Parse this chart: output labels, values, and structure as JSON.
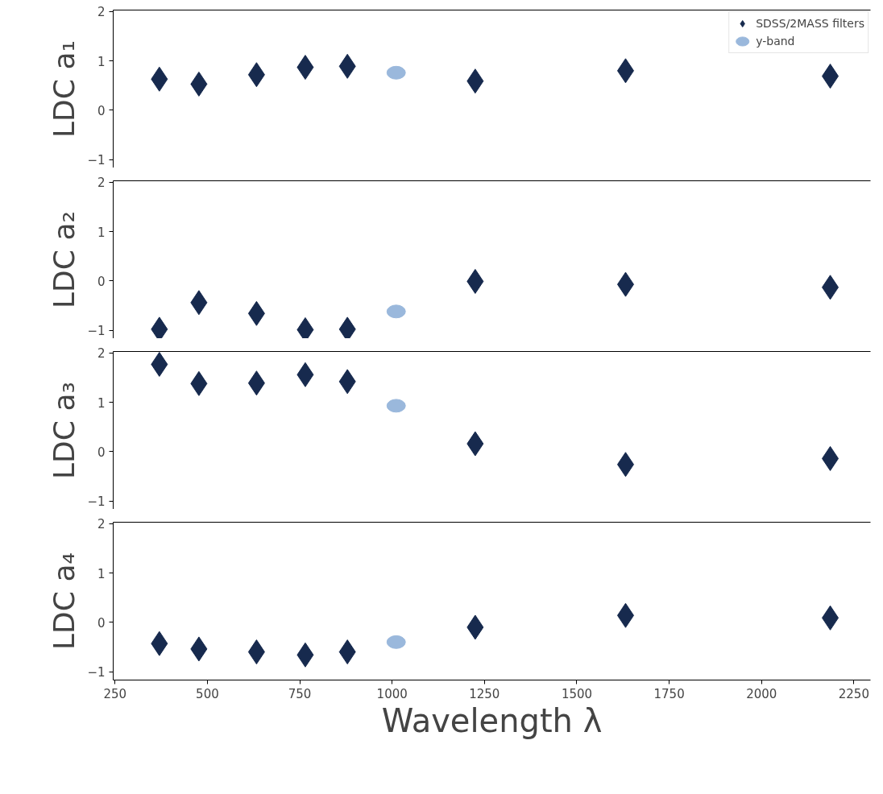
{
  "chart_data": [
    {
      "type": "scatter",
      "ylabel": "LDC a₁",
      "xlim": [
        245,
        2295
      ],
      "xticks": [
        250,
        500,
        750,
        1000,
        1250,
        1500,
        1750,
        2000,
        2250
      ],
      "ylim": [
        -1.17,
        2.03
      ],
      "yticks": [
        -1,
        0,
        1,
        2
      ],
      "tick_labels": "y",
      "legend": "top right",
      "grid": false,
      "series": [
        {
          "name": "SDSS/2MASS filters",
          "color": "#172a4e",
          "marker": "diamond",
          "x": [
            370,
            477,
            633,
            765,
            879,
            1225,
            1632,
            2186
          ],
          "values": [
            0.63,
            0.53,
            0.72,
            0.87,
            0.89,
            0.59,
            0.8,
            0.69
          ]
        },
        {
          "name": "y-band",
          "color": "#9ab8dc",
          "marker": "circle",
          "x": [
            1011
          ],
          "values": [
            0.76
          ]
        }
      ]
    },
    {
      "type": "scatter",
      "ylabel": "LDC a₂",
      "xlim": [
        245,
        2295
      ],
      "xticks": [
        250,
        500,
        750,
        1000,
        1250,
        1500,
        1750,
        2000,
        2250
      ],
      "ylim": [
        -1.17,
        2.03
      ],
      "yticks": [
        -1,
        0,
        1,
        2
      ],
      "tick_labels": "y",
      "grid": false,
      "series": [
        {
          "color": "#172a4e",
          "marker": "diamond",
          "x": [
            370,
            477,
            633,
            765,
            879,
            1225,
            1632,
            2186
          ],
          "values": [
            -0.98,
            -0.44,
            -0.66,
            -0.99,
            -0.98,
            -0.01,
            -0.07,
            -0.13
          ]
        },
        {
          "color": "#9ab8dc",
          "marker": "circle",
          "x": [
            1011
          ],
          "values": [
            -0.62
          ]
        }
      ]
    },
    {
      "type": "scatter",
      "ylabel": "LDC a₃",
      "xlim": [
        245,
        2295
      ],
      "xticks": [
        250,
        500,
        750,
        1000,
        1250,
        1500,
        1750,
        2000,
        2250
      ],
      "ylim": [
        -1.17,
        2.03
      ],
      "yticks": [
        -1,
        0,
        1,
        2
      ],
      "tick_labels": "y",
      "grid": false,
      "series": [
        {
          "color": "#172a4e",
          "marker": "diamond",
          "x": [
            370,
            477,
            633,
            765,
            879,
            1225,
            1632,
            2186
          ],
          "values": [
            1.77,
            1.38,
            1.39,
            1.56,
            1.42,
            0.16,
            -0.26,
            -0.14
          ]
        },
        {
          "color": "#9ab8dc",
          "marker": "circle",
          "x": [
            1011
          ],
          "values": [
            0.93
          ]
        }
      ]
    },
    {
      "type": "scatter",
      "ylabel": "LDC a₄",
      "xlabel": "Wavelength λ",
      "xlim": [
        245,
        2295
      ],
      "xticks": [
        250,
        500,
        750,
        1000,
        1250,
        1500,
        1750,
        2000,
        2250
      ],
      "ylim": [
        -1.17,
        2.03
      ],
      "yticks": [
        -1,
        0,
        1,
        2
      ],
      "grid": false,
      "series": [
        {
          "color": "#172a4e",
          "marker": "diamond",
          "x": [
            370,
            477,
            633,
            765,
            879,
            1225,
            1632,
            2186
          ],
          "values": [
            -0.43,
            -0.54,
            -0.6,
            -0.66,
            -0.6,
            -0.1,
            0.14,
            0.09
          ]
        },
        {
          "color": "#9ab8dc",
          "marker": "circle",
          "x": [
            1011
          ],
          "values": [
            -0.4
          ]
        }
      ]
    }
  ]
}
